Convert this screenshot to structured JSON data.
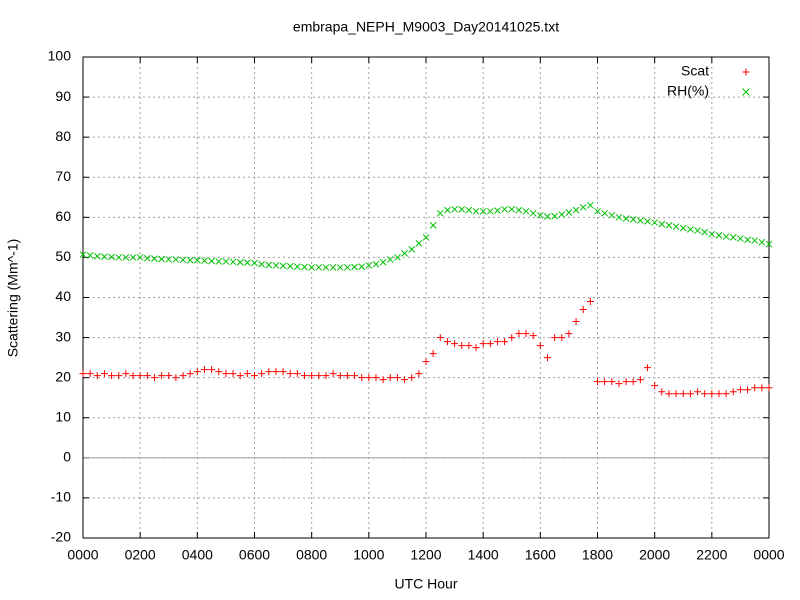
{
  "chart_data": {
    "type": "scatter",
    "title": "embrapa_NEPH_M9003_Day20141025.txt",
    "xlabel": "UTC Hour",
    "ylabel": "Scattering (Mm^-1)",
    "xlim": [
      0,
      24
    ],
    "ylim": [
      -20,
      100
    ],
    "xticks": [
      {
        "value": 0,
        "label": "0000"
      },
      {
        "value": 2,
        "label": "0200"
      },
      {
        "value": 4,
        "label": "0400"
      },
      {
        "value": 6,
        "label": "0600"
      },
      {
        "value": 8,
        "label": "0800"
      },
      {
        "value": 10,
        "label": "1000"
      },
      {
        "value": 12,
        "label": "1200"
      },
      {
        "value": 14,
        "label": "1400"
      },
      {
        "value": 16,
        "label": "1600"
      },
      {
        "value": 18,
        "label": "1800"
      },
      {
        "value": 20,
        "label": "2000"
      },
      {
        "value": 22,
        "label": "2200"
      },
      {
        "value": 24,
        "label": "0000"
      }
    ],
    "yticks": [
      -20,
      -10,
      0,
      10,
      20,
      30,
      40,
      50,
      60,
      70,
      80,
      90,
      100
    ],
    "grid": true,
    "legend": "top-right",
    "x": [
      0,
      0.25,
      0.5,
      0.75,
      1,
      1.25,
      1.5,
      1.75,
      2,
      2.25,
      2.5,
      2.75,
      3,
      3.25,
      3.5,
      3.75,
      4,
      4.25,
      4.5,
      4.75,
      5,
      5.25,
      5.5,
      5.75,
      6,
      6.25,
      6.5,
      6.75,
      7,
      7.25,
      7.5,
      7.75,
      8,
      8.25,
      8.5,
      8.75,
      9,
      9.25,
      9.5,
      9.75,
      10,
      10.25,
      10.5,
      10.75,
      11,
      11.25,
      11.5,
      11.75,
      12,
      12.25,
      12.5,
      12.75,
      13,
      13.25,
      13.5,
      13.75,
      14,
      14.25,
      14.5,
      14.75,
      15,
      15.25,
      15.5,
      15.75,
      16,
      16.25,
      16.5,
      16.75,
      17,
      17.25,
      17.5,
      17.75,
      18,
      18.25,
      18.5,
      18.75,
      19,
      19.25,
      19.5,
      19.75,
      20,
      20.25,
      20.5,
      20.75,
      21,
      21.25,
      21.5,
      21.75,
      22,
      22.25,
      22.5,
      22.75,
      23,
      23.25,
      23.5,
      23.75,
      24
    ],
    "series": [
      {
        "name": "Scat",
        "color": "#ff0000",
        "marker": "plus",
        "values": [
          21,
          21,
          20.5,
          21,
          20.5,
          20.5,
          21,
          20.5,
          20.5,
          20.5,
          20,
          20.5,
          20.5,
          20,
          20.5,
          21,
          21.5,
          22,
          22,
          21.5,
          21,
          21,
          20.5,
          21,
          20.5,
          21,
          21.5,
          21.5,
          21.5,
          21,
          21,
          20.5,
          20.5,
          20.5,
          20.5,
          21,
          20.5,
          20.5,
          20.5,
          20,
          20,
          20,
          19.5,
          20,
          20,
          19.5,
          20,
          21,
          24,
          26,
          30,
          29,
          28.5,
          28,
          28,
          27.5,
          28.5,
          28.5,
          29,
          29,
          30,
          31,
          31,
          30.5,
          28,
          25,
          30,
          30,
          31,
          34,
          37,
          39,
          19,
          19,
          19,
          18.5,
          19,
          19,
          19.5,
          22.5,
          18,
          16.5,
          16,
          16,
          16,
          16,
          16.5,
          16,
          16,
          16,
          16,
          16.5,
          17,
          17,
          17.5,
          17.5,
          17.5
        ]
      },
      {
        "name": "RH(%)",
        "color": "#00c000",
        "marker": "cross",
        "values": [
          50.7,
          50.5,
          50.3,
          50.2,
          50.1,
          50,
          50,
          50,
          50,
          49.8,
          49.7,
          49.6,
          49.5,
          49.5,
          49.4,
          49.3,
          49.3,
          49.2,
          49.1,
          49,
          49,
          48.9,
          48.8,
          48.7,
          48.6,
          48.3,
          48.1,
          48,
          47.9,
          47.8,
          47.7,
          47.6,
          47.5,
          47.5,
          47.5,
          47.5,
          47.5,
          47.5,
          47.6,
          47.7,
          48,
          48.3,
          48.8,
          49.5,
          50,
          51,
          52,
          53.5,
          55,
          58,
          61,
          61.8,
          62,
          62,
          61.8,
          61.5,
          61.5,
          61.5,
          61.7,
          62,
          62,
          61.8,
          61.5,
          61,
          60.5,
          60.2,
          60.3,
          60.7,
          61.2,
          61.8,
          62.5,
          63,
          61.5,
          61,
          60.5,
          60,
          59.7,
          59.5,
          59.2,
          59,
          58.7,
          58.3,
          58,
          57.7,
          57.3,
          57,
          56.7,
          56.3,
          55.8,
          55.5,
          55.2,
          55,
          54.7,
          54.4,
          54.2,
          53.8,
          53.3
        ]
      }
    ]
  }
}
